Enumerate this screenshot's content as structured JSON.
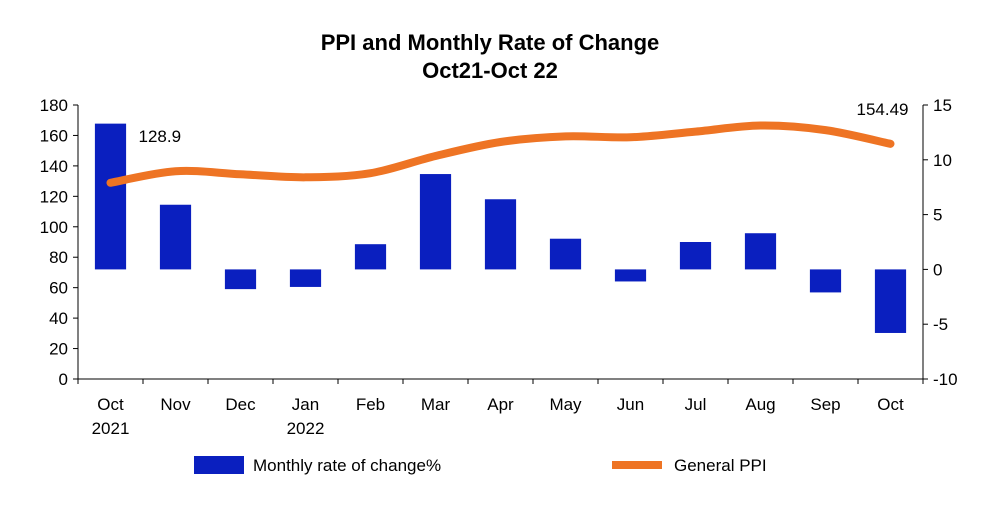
{
  "chart_data": {
    "type": "bar+line",
    "title": "PPI and Monthly Rate of Change",
    "subtitle": "Oct21-Oct 22",
    "categories": [
      [
        "Oct",
        "2021"
      ],
      [
        "Nov",
        ""
      ],
      [
        "Dec",
        ""
      ],
      [
        "Jan",
        "2022"
      ],
      [
        "Feb",
        ""
      ],
      [
        "Mar",
        ""
      ],
      [
        "Apr",
        ""
      ],
      [
        "May",
        ""
      ],
      [
        "Jun",
        ""
      ],
      [
        "Jul",
        ""
      ],
      [
        "Aug",
        ""
      ],
      [
        "Sep",
        ""
      ],
      [
        "Oct",
        ""
      ]
    ],
    "left_axis": {
      "ylim": [
        0,
        180
      ],
      "ticks": [
        "0",
        "20",
        "40",
        "60",
        "80",
        "100",
        "120",
        "140",
        "160",
        "180"
      ]
    },
    "right_axis": {
      "ylim": [
        -10,
        15
      ],
      "ticks": [
        "-10",
        "-5",
        "0",
        "5",
        "10",
        "15"
      ]
    },
    "series": [
      {
        "name": "Monthly rate of change%",
        "type": "bar",
        "axis": "right",
        "color": "#0a1fbf",
        "values": [
          13.3,
          5.9,
          -1.8,
          -1.6,
          2.3,
          8.7,
          6.4,
          2.8,
          -1.1,
          2.5,
          3.3,
          -2.1,
          -5.8
        ]
      },
      {
        "name": "General PPI",
        "type": "line",
        "axis": "left",
        "color": "#ee7424",
        "values": [
          128.9,
          136.5,
          134.5,
          132.5,
          135.2,
          146.5,
          155.7,
          159.4,
          158.8,
          162.5,
          166.5,
          163.5,
          154.49
        ]
      }
    ],
    "annotations": [
      {
        "text": "128.9",
        "series": "General PPI",
        "index": 0
      },
      {
        "text": "154.49",
        "series": "General PPI",
        "index": 12
      }
    ],
    "legend": {
      "position": "bottom"
    },
    "grid": false
  }
}
